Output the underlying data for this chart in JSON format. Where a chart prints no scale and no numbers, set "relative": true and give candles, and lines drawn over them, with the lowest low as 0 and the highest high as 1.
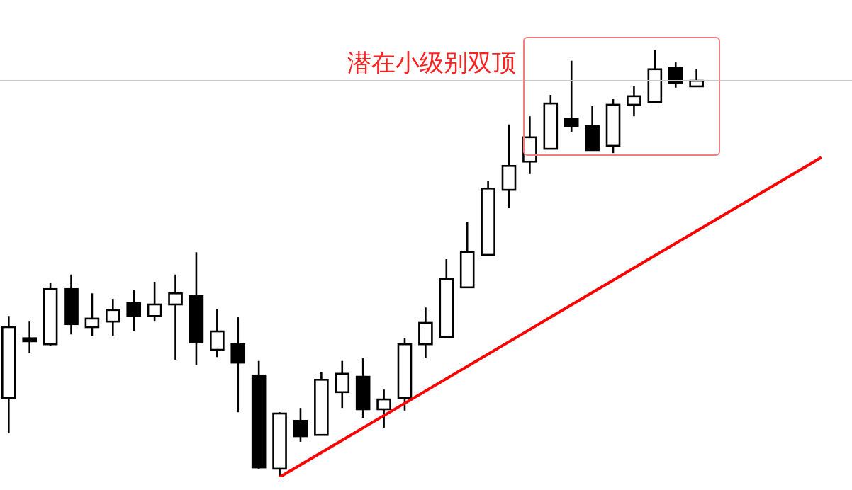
{
  "chart_data": {
    "type": "candlestick",
    "relative": true,
    "categories": [
      null,
      null,
      null,
      null,
      null,
      null,
      null,
      null,
      null,
      null,
      null,
      null,
      null,
      null,
      null,
      null,
      null,
      null,
      null,
      null,
      null,
      null,
      null,
      null,
      null,
      null,
      null,
      null,
      null,
      null,
      null,
      null,
      null,
      null,
      null,
      null,
      null,
      null,
      null,
      null
    ],
    "ohlc": [
      [
        0.185,
        0.377,
        0.103,
        0.351
      ],
      [
        0.325,
        0.364,
        0.291,
        0.318
      ],
      [
        0.311,
        0.454,
        0.308,
        0.44
      ],
      [
        0.44,
        0.474,
        0.334,
        0.358
      ],
      [
        0.351,
        0.43,
        0.331,
        0.371
      ],
      [
        0.364,
        0.417,
        0.331,
        0.391
      ],
      [
        0.407,
        0.437,
        0.341,
        0.377
      ],
      [
        0.377,
        0.457,
        0.364,
        0.404
      ],
      [
        0.404,
        0.474,
        0.275,
        0.43
      ],
      [
        0.424,
        0.526,
        0.262,
        0.315
      ],
      [
        0.298,
        0.394,
        0.281,
        0.341
      ],
      [
        0.311,
        0.374,
        0.152,
        0.268
      ],
      [
        0.238,
        0.272,
        0.02,
        0.023
      ],
      [
        0.02,
        0.152,
        0,
        0.149
      ],
      [
        0.132,
        0.162,
        0.083,
        0.096
      ],
      [
        0.099,
        0.245,
        0.099,
        0.228
      ],
      [
        0.199,
        0.272,
        0.162,
        0.242
      ],
      [
        0.235,
        0.278,
        0.139,
        0.159
      ],
      [
        0.159,
        0.205,
        0.116,
        0.182
      ],
      [
        0.185,
        0.325,
        0.156,
        0.311
      ],
      [
        0.311,
        0.397,
        0.278,
        0.361
      ],
      [
        0.328,
        0.51,
        0.325,
        0.464
      ],
      [
        0.444,
        0.596,
        0.444,
        0.526
      ],
      [
        0.52,
        0.692,
        0.52,
        0.675
      ],
      [
        0.672,
        0.825,
        0.629,
        0.728
      ],
      [
        0.738,
        0.844,
        0.709,
        0.795
      ],
      [
        0.768,
        0.894,
        0.768,
        0.874
      ],
      [
        0.838,
        0.974,
        0.808,
        0.821
      ],
      [
        0.821,
        0.868,
        0.765,
        0.765
      ],
      [
        0.775,
        0.884,
        0.758,
        0.871
      ],
      [
        0.871,
        0.914,
        0.844,
        0.891
      ],
      [
        0.877,
        1,
        0.877,
        0.954
      ],
      [
        0.957,
        0.97,
        0.911,
        0.921
      ],
      [
        0.914,
        0.954,
        0.914,
        0.927
      ],
      null,
      null,
      null,
      null,
      null,
      null
    ],
    "series": [
      {
        "type": "line",
        "color": "#ff0000",
        "values": [
          null,
          null,
          null,
          null,
          null,
          null,
          null,
          null,
          null,
          null,
          null,
          null,
          null,
          0,
          null,
          null,
          null,
          null,
          null,
          null,
          null,
          null,
          null,
          null,
          null,
          null,
          null,
          null,
          null,
          null,
          null,
          null,
          null,
          null,
          null,
          null,
          null,
          null,
          null,
          0.748
        ]
      }
    ],
    "ref_lines": [
      {
        "axis": "y",
        "value": 0.927,
        "color": "#c8c8c8"
      }
    ],
    "annotations": [
      "潜在小级别双顶"
    ]
  }
}
